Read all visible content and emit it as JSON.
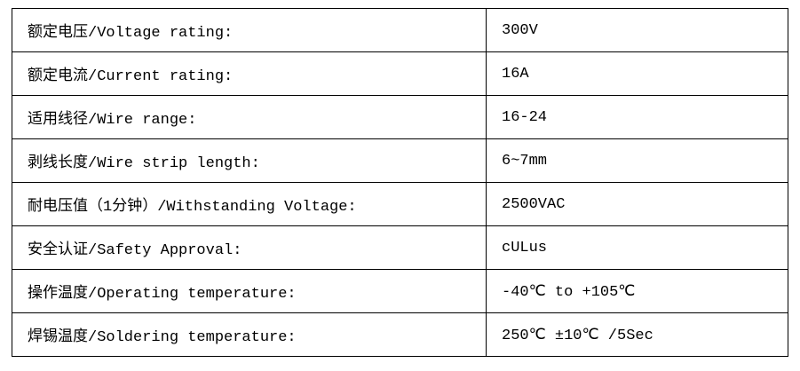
{
  "specs": [
    {
      "label": "额定电压/Voltage rating:",
      "value": "300V"
    },
    {
      "label": "额定电流/Current rating:",
      "value": "16A"
    },
    {
      "label": "适用线径/Wire range:",
      "value": "16-24"
    },
    {
      "label": "剥线长度/Wire strip length:",
      "value": "6~7mm"
    },
    {
      "label": "耐电压值（1分钟）/Withstanding Voltage:",
      "value": "2500VAC"
    },
    {
      "label": "安全认证/Safety Approval:",
      "value": "cULus"
    },
    {
      "label": "操作温度/Operating temperature:",
      "value": "-40℃ to +105℃"
    },
    {
      "label": "焊锡温度/Soldering temperature:",
      "value": "250℃ ±10℃ /5Sec"
    }
  ]
}
